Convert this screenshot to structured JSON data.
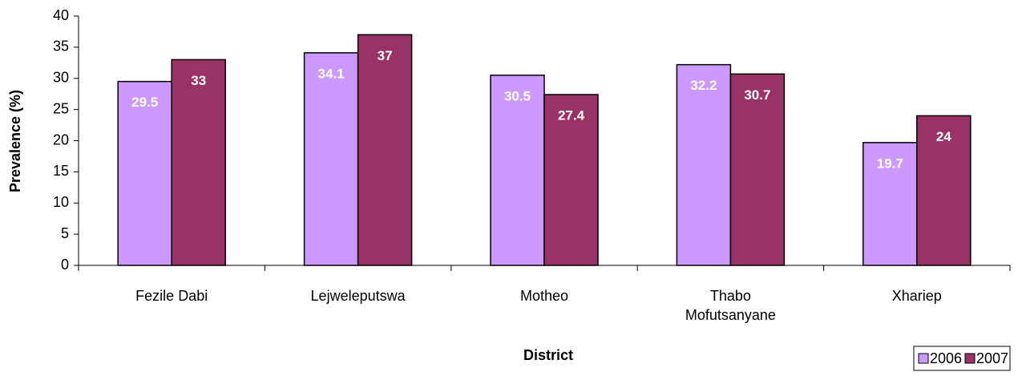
{
  "chart_data": {
    "type": "bar",
    "categories": [
      "Fezile Dabi",
      "Lejweleputswa",
      "Motheo",
      "Thabo Mofutsanyane",
      "Xhariep"
    ],
    "series": [
      {
        "name": "2006",
        "color": "#cc99ff",
        "values": [
          29.5,
          34.1,
          30.5,
          32.2,
          19.7
        ]
      },
      {
        "name": "2007",
        "color": "#993366",
        "values": [
          33,
          37,
          27.4,
          30.7,
          24
        ]
      }
    ],
    "x_label": "District",
    "y_label": "Prevalence (%)",
    "ylim": [
      0,
      40
    ],
    "yticks": [
      0,
      5,
      10,
      15,
      20,
      25,
      30,
      35,
      40
    ],
    "legend": "bottom-right"
  }
}
